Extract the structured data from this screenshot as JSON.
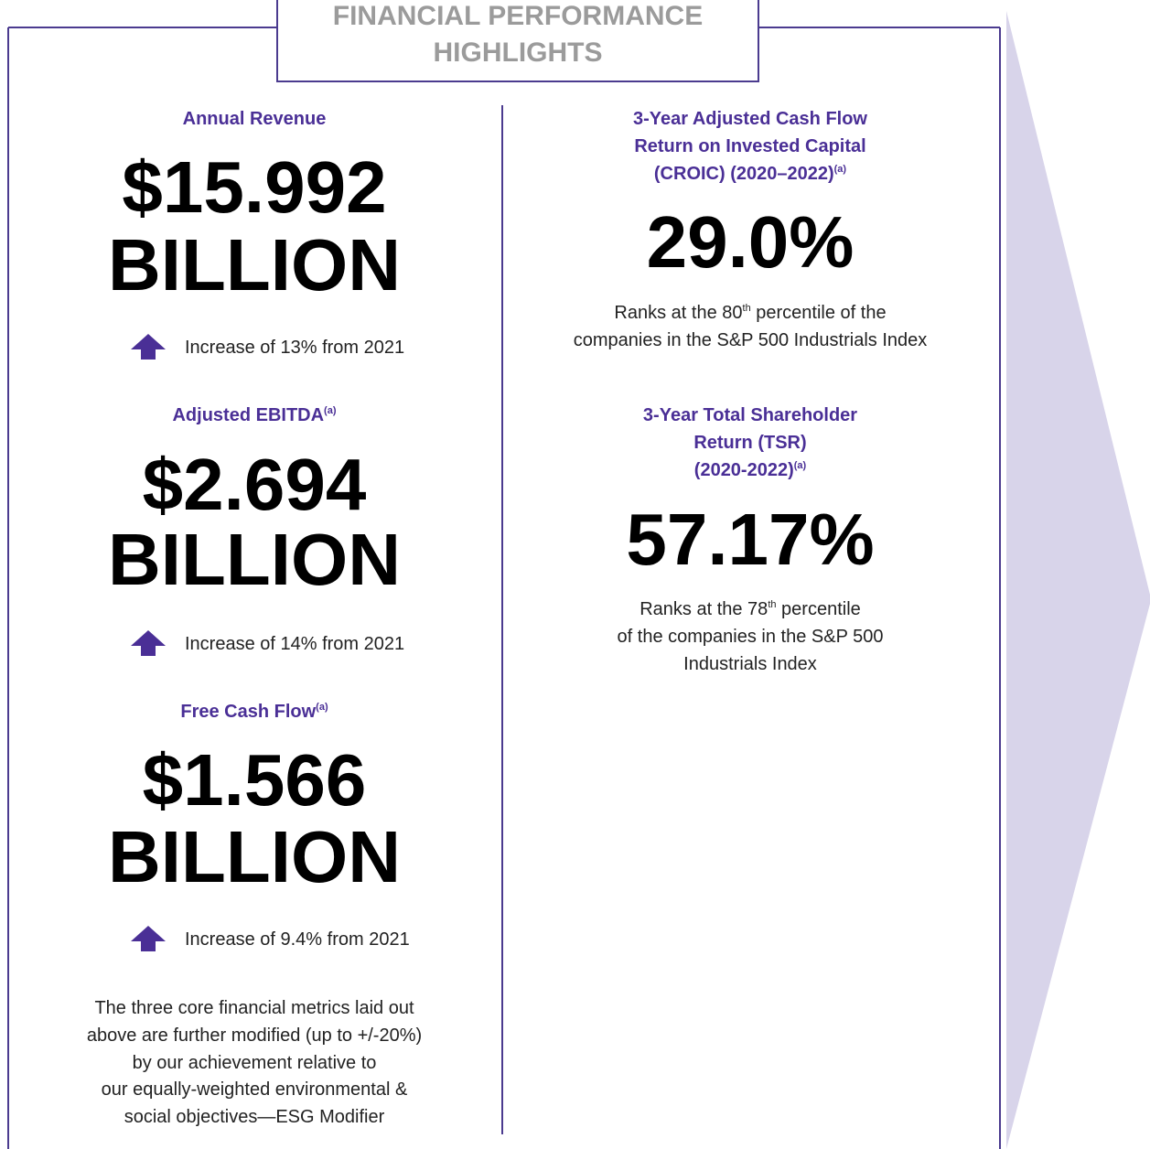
{
  "header": {
    "title_lines": [
      "FINANCIAL PERFORMANCE",
      "HIGHLIGHTS"
    ]
  },
  "left": {
    "metrics": [
      {
        "label": "Annual Revenue",
        "label_sup": null,
        "value_lines": [
          "$15.992",
          "BILLION"
        ],
        "change": "Increase of 13% from 2021"
      },
      {
        "label": "Adjusted EBITDA",
        "label_sup": "(a)",
        "value_lines": [
          "$2.694",
          "BILLION"
        ],
        "change": "Increase of 14% from 2021"
      },
      {
        "label": "Free Cash Flow",
        "label_sup": "(a)",
        "value_lines": [
          "$1.566",
          "BILLION"
        ],
        "change": "Increase of 9.4% from 2021"
      }
    ],
    "footnote_lines": [
      "The three core financial metrics laid out",
      "above are further modified (up to +/-20%)",
      "by our achievement relative to",
      "our equally-weighted environmental &",
      "social objectives—ESG Modifier"
    ]
  },
  "right": {
    "metrics": [
      {
        "label_lines": [
          "3-Year Adjusted Cash Flow",
          "Return on Invested Capital",
          "(CROIC) (2020–2022)"
        ],
        "label_sup": "(a)",
        "value": "29.0%",
        "note_before": "Ranks at the 80",
        "note_sup": "th",
        "note_after": " percentile of the",
        "note_lines": [
          "companies in the S&P 500 Industrials Index"
        ]
      },
      {
        "label_lines": [
          "3-Year Total Shareholder",
          "Return (TSR)",
          "(2020-2022)"
        ],
        "label_sup": "(a)",
        "value": "57.17%",
        "note_before": "Ranks at the 78",
        "note_sup": "th",
        "note_after": " percentile",
        "note_lines": [
          "of the companies in the S&P 500",
          "Industrials Index"
        ]
      }
    ]
  }
}
